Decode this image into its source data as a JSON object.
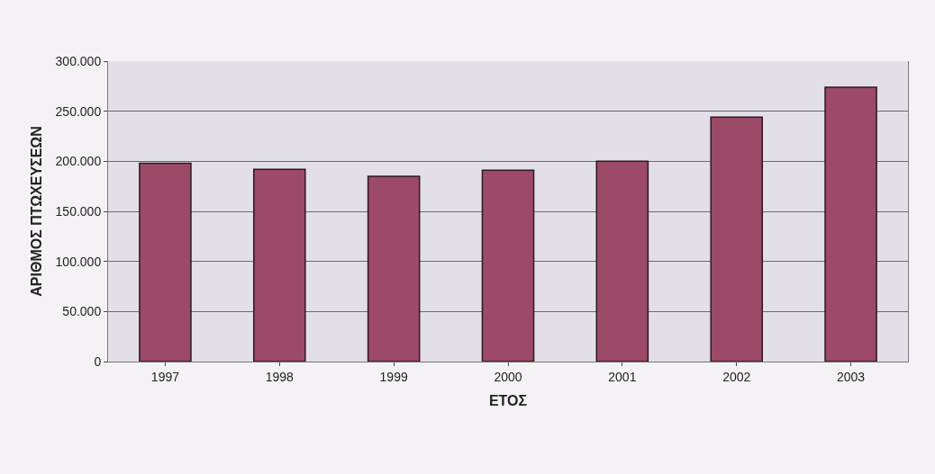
{
  "chart_data": {
    "type": "bar",
    "xlabel": "ΕΤΟΣ",
    "ylabel": "ΑΡΙΘΜΟΣ ΠΤΩΧΕΥΣΕΩΝ",
    "categories": [
      "1997",
      "1998",
      "1999",
      "2000",
      "2001",
      "2002",
      "2003"
    ],
    "values": [
      198000,
      192000,
      185000,
      191000,
      200000,
      244000,
      274000
    ],
    "color": "#9c4a68",
    "ylim": [
      0,
      300000
    ],
    "yticks": [
      0,
      {
        "value": 50000,
        "label": "50.000"
      },
      {
        "value": 100000,
        "label": "100.000"
      },
      {
        "value": 150000,
        "label": "150.000"
      },
      {
        "value": 200000,
        "label": "200.000"
      },
      {
        "value": 250000,
        "label": "250.000"
      },
      {
        "value": 300000,
        "label": "300.000"
      }
    ],
    "grid": "y"
  }
}
